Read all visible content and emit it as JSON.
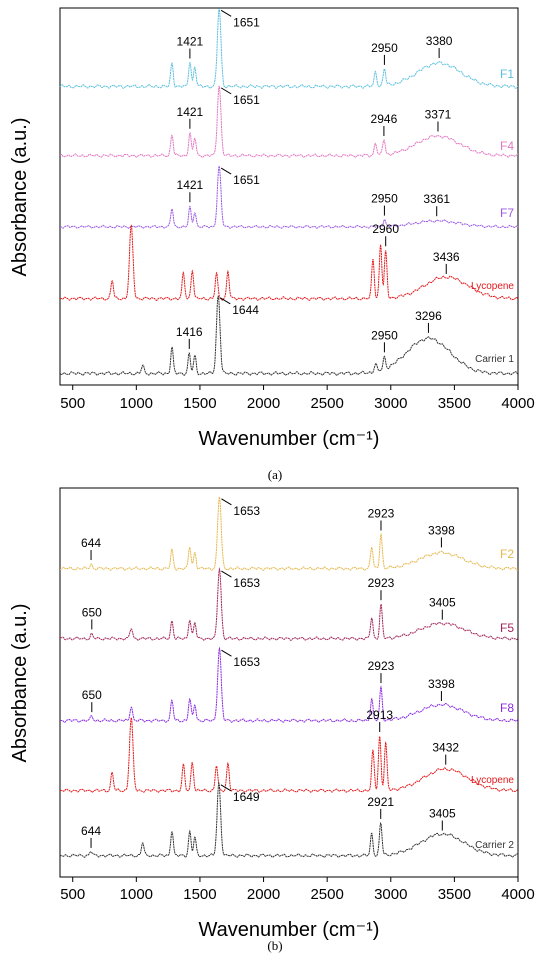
{
  "chart_data": [
    {
      "type": "line",
      "panel": "(a)",
      "xlabel": "Wavenumber (cm⁻¹)",
      "ylabel": "Absorbance (a.u.)",
      "xlim": [
        400,
        4000
      ],
      "xticks": [
        500,
        1000,
        1500,
        2000,
        2500,
        3000,
        3500,
        4000
      ],
      "y_ticks_shown": false,
      "series": [
        {
          "name": "F1",
          "color": "#5bc0de",
          "peaks": [
            {
              "x": 1280,
              "h": 0.3
            },
            {
              "x": 1421,
              "h": 0.32,
              "label": "1421"
            },
            {
              "x": 1460,
              "h": 0.25
            },
            {
              "x": 1651,
              "h": 1.0,
              "label": "1651"
            },
            {
              "x": 2880,
              "h": 0.18
            },
            {
              "x": 2950,
              "h": 0.22,
              "label": "2950"
            },
            {
              "x": 3380,
              "h": 0.3,
              "label": "3380",
              "broad": true
            }
          ]
        },
        {
          "name": "F4",
          "color": "#e377c2",
          "peaks": [
            {
              "x": 1280,
              "h": 0.3
            },
            {
              "x": 1421,
              "h": 0.32,
              "label": "1421"
            },
            {
              "x": 1460,
              "h": 0.25
            },
            {
              "x": 1651,
              "h": 1.0,
              "label": "1651"
            },
            {
              "x": 2880,
              "h": 0.18
            },
            {
              "x": 2946,
              "h": 0.22,
              "label": "2946"
            },
            {
              "x": 3371,
              "h": 0.28,
              "label": "3371",
              "broad": true
            }
          ]
        },
        {
          "name": "F7",
          "color": "#9b59e6",
          "peaks": [
            {
              "x": 1280,
              "h": 0.3
            },
            {
              "x": 1421,
              "h": 0.32,
              "label": "1421"
            },
            {
              "x": 1460,
              "h": 0.25
            },
            {
              "x": 1651,
              "h": 1.0,
              "label": "1651"
            },
            {
              "x": 2950,
              "h": 0.12,
              "label": "2950"
            },
            {
              "x": 3361,
              "h": 0.1,
              "label": "3361",
              "broad": true
            }
          ]
        },
        {
          "name": "Lycopene",
          "color": "#e31a1c",
          "peaks": [
            {
              "x": 810,
              "h": 0.25
            },
            {
              "x": 960,
              "h": 1.0
            },
            {
              "x": 1370,
              "h": 0.35
            },
            {
              "x": 1440,
              "h": 0.4
            },
            {
              "x": 1630,
              "h": 0.35
            },
            {
              "x": 1720,
              "h": 0.38
            },
            {
              "x": 2860,
              "h": 0.55
            },
            {
              "x": 2920,
              "h": 0.75
            },
            {
              "x": 2960,
              "h": 0.65,
              "label": "2960"
            },
            {
              "x": 3436,
              "h": 0.3,
              "label": "3436",
              "broad": true
            }
          ]
        },
        {
          "name": "Carrier 1",
          "color": "#333333",
          "peaks": [
            {
              "x": 1050,
              "h": 0.1
            },
            {
              "x": 1280,
              "h": 0.33
            },
            {
              "x": 1416,
              "h": 0.25,
              "label": "1416"
            },
            {
              "x": 1460,
              "h": 0.22
            },
            {
              "x": 1644,
              "h": 1.0,
              "label": "1644"
            },
            {
              "x": 2880,
              "h": 0.1
            },
            {
              "x": 2950,
              "h": 0.15,
              "label": "2950"
            },
            {
              "x": 3296,
              "h": 0.45,
              "label": "3296",
              "broad": true
            }
          ]
        }
      ]
    },
    {
      "type": "line",
      "panel": "(b)",
      "xlabel": "Wavenumber (cm⁻¹)",
      "ylabel": "Absorbance (a.u.)",
      "xlim": [
        400,
        4000
      ],
      "xticks": [
        500,
        1000,
        1500,
        2000,
        2500,
        3000,
        3500,
        4000
      ],
      "y_ticks_shown": false,
      "series": [
        {
          "name": "F2",
          "color": "#e6b84d",
          "peaks": [
            {
              "x": 644,
              "h": 0.06,
              "label": "644"
            },
            {
              "x": 1280,
              "h": 0.25
            },
            {
              "x": 1420,
              "h": 0.3
            },
            {
              "x": 1460,
              "h": 0.22
            },
            {
              "x": 1653,
              "h": 1.0,
              "label": "1653"
            },
            {
              "x": 2850,
              "h": 0.3
            },
            {
              "x": 2923,
              "h": 0.48,
              "label": "2923"
            },
            {
              "x": 3398,
              "h": 0.22,
              "label": "3398",
              "broad": true
            }
          ]
        },
        {
          "name": "F5",
          "color": "#a2255a",
          "peaks": [
            {
              "x": 650,
              "h": 0.06,
              "label": "650"
            },
            {
              "x": 960,
              "h": 0.15
            },
            {
              "x": 1280,
              "h": 0.25
            },
            {
              "x": 1420,
              "h": 0.28
            },
            {
              "x": 1460,
              "h": 0.22
            },
            {
              "x": 1653,
              "h": 1.0,
              "label": "1653"
            },
            {
              "x": 2850,
              "h": 0.3
            },
            {
              "x": 2923,
              "h": 0.48,
              "label": "2923"
            },
            {
              "x": 3405,
              "h": 0.22,
              "label": "3405",
              "broad": true
            }
          ]
        },
        {
          "name": "F8",
          "color": "#8a2be2",
          "peaks": [
            {
              "x": 650,
              "h": 0.06,
              "label": "650"
            },
            {
              "x": 960,
              "h": 0.2
            },
            {
              "x": 1280,
              "h": 0.28
            },
            {
              "x": 1420,
              "h": 0.3
            },
            {
              "x": 1460,
              "h": 0.22
            },
            {
              "x": 1653,
              "h": 1.0,
              "label": "1653"
            },
            {
              "x": 2850,
              "h": 0.3
            },
            {
              "x": 2923,
              "h": 0.45,
              "label": "2923"
            },
            {
              "x": 3398,
              "h": 0.22,
              "label": "3398",
              "broad": true
            }
          ]
        },
        {
          "name": "Lycopene",
          "color": "#e31a1c",
          "peaks": [
            {
              "x": 810,
              "h": 0.25
            },
            {
              "x": 960,
              "h": 1.0
            },
            {
              "x": 1370,
              "h": 0.35
            },
            {
              "x": 1440,
              "h": 0.4
            },
            {
              "x": 1630,
              "h": 0.35
            },
            {
              "x": 1720,
              "h": 0.38
            },
            {
              "x": 2860,
              "h": 0.55
            },
            {
              "x": 2913,
              "h": 0.75,
              "label": "2913"
            },
            {
              "x": 2960,
              "h": 0.65
            },
            {
              "x": 3432,
              "h": 0.3,
              "label": "3432",
              "broad": true
            }
          ]
        },
        {
          "name": "Carrier 2",
          "color": "#333333",
          "peaks": [
            {
              "x": 644,
              "h": 0.06,
              "label": "644"
            },
            {
              "x": 1050,
              "h": 0.18
            },
            {
              "x": 1280,
              "h": 0.35
            },
            {
              "x": 1420,
              "h": 0.33
            },
            {
              "x": 1460,
              "h": 0.25
            },
            {
              "x": 1649,
              "h": 1.0,
              "label": "1649"
            },
            {
              "x": 2850,
              "h": 0.3
            },
            {
              "x": 2921,
              "h": 0.45,
              "label": "2921"
            },
            {
              "x": 3405,
              "h": 0.3,
              "label": "3405",
              "broad": true
            }
          ]
        }
      ]
    }
  ]
}
